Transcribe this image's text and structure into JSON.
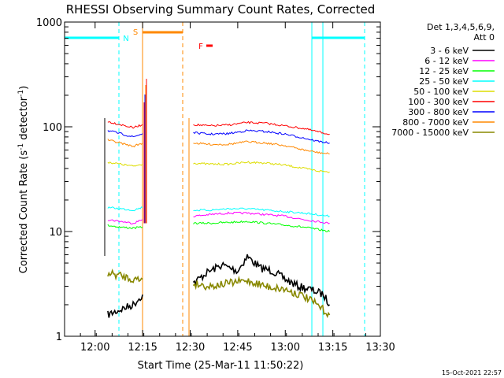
{
  "chart_data": {
    "type": "line",
    "title": "RHESSI Observing Summary Count Rates, Corrected",
    "xlabel": "Start Time (25-Mar-11 11:50:22)",
    "ylabel_main": "Corrected Count Rate (s",
    "ylabel_sup1": "-1",
    "ylabel_mid": " detector",
    "ylabel_sup2": "-1",
    "ylabel_end": ")",
    "yscale": "log",
    "xlim": [
      "11:50:22",
      "13:30:00"
    ],
    "ylim": [
      1,
      1000
    ],
    "grid": false,
    "x_ticks": [
      "12:00",
      "12:15",
      "12:30",
      "12:45",
      "13:00",
      "13:15",
      "13:30"
    ],
    "y_ticks": [
      "1",
      "10",
      "100",
      "1000"
    ],
    "legend": {
      "placement": "right",
      "header_line1": "Det 1,3,4,5,6,9,",
      "header_line2": "Att 0"
    },
    "series": [
      {
        "name": "3 - 6 keV",
        "color": "#000000",
        "segments": [
          {
            "x": [
              "12:04",
              "12:08",
              "12:12",
              "12:15"
            ],
            "y": [
              1.6,
              1.8,
              2.0,
              2.5
            ]
          },
          {
            "x": [
              "12:31",
              "12:35",
              "12:40",
              "12:45",
              "12:48",
              "12:52",
              "12:56",
              "13:00",
              "13:04",
              "13:08",
              "13:12",
              "13:14"
            ],
            "y": [
              3.2,
              4.0,
              4.8,
              4.2,
              5.8,
              4.5,
              4.2,
              3.5,
              3.0,
              2.8,
              2.5,
              2.0
            ]
          }
        ]
      },
      {
        "name": "6 - 12 keV",
        "color": "#ff00ff",
        "segments": [
          {
            "x": [
              "12:04",
              "12:08",
              "12:12",
              "12:15"
            ],
            "y": [
              13,
              12.5,
              12,
              13
            ]
          },
          {
            "x": [
              "12:31",
              "12:36",
              "12:42",
              "12:48",
              "12:54",
              "13:00",
              "13:06",
              "13:10",
              "13:14"
            ],
            "y": [
              14,
              14.5,
              15,
              15,
              14.5,
              14,
              13,
              12.5,
              12
            ]
          }
        ]
      },
      {
        "name": "12 - 25 keV",
        "color": "#00ff00",
        "segments": [
          {
            "x": [
              "12:04",
              "12:08",
              "12:12",
              "12:15"
            ],
            "y": [
              11.5,
              11,
              10.8,
              11
            ]
          },
          {
            "x": [
              "12:31",
              "12:36",
              "12:42",
              "12:48",
              "12:54",
              "13:00",
              "13:06",
              "13:10",
              "13:14"
            ],
            "y": [
              12,
              12,
              12.2,
              12.5,
              12,
              11.5,
              11,
              10.5,
              10
            ]
          }
        ]
      },
      {
        "name": "25 - 50 keV",
        "color": "#00ffff",
        "segments": [
          {
            "x": [
              "12:04",
              "12:08",
              "12:12",
              "12:15"
            ],
            "y": [
              17,
              16.5,
              16,
              17
            ]
          },
          {
            "x": [
              "12:31",
              "12:36",
              "12:42",
              "12:48",
              "12:54",
              "13:00",
              "13:06",
              "13:10",
              "13:14"
            ],
            "y": [
              16,
              16,
              16.5,
              16.5,
              16,
              15.5,
              15,
              14.5,
              14
            ]
          }
        ]
      },
      {
        "name": "50 - 100 keV",
        "color": "#dddd00",
        "segments": [
          {
            "x": [
              "12:04",
              "12:08",
              "12:12",
              "12:15"
            ],
            "y": [
              46,
              44,
              42,
              44
            ]
          },
          {
            "x": [
              "12:31",
              "12:36",
              "12:42",
              "12:48",
              "12:54",
              "13:00",
              "13:06",
              "13:10",
              "13:14"
            ],
            "y": [
              45,
              44,
              44,
              46,
              45,
              43,
              40,
              38,
              37
            ]
          }
        ]
      },
      {
        "name": "100 - 300 keV",
        "color": "#ff0000",
        "segments": [
          {
            "x": [
              "12:04",
              "12:08",
              "12:12",
              "12:15"
            ],
            "y": [
              112,
              105,
              98,
              105
            ]
          },
          {
            "x": [
              "12:31",
              "12:36",
              "12:42",
              "12:48",
              "12:54",
              "13:00",
              "13:06",
              "13:10",
              "13:14"
            ],
            "y": [
              105,
              102,
              104,
              110,
              108,
              102,
              96,
              90,
              85
            ]
          }
        ]
      },
      {
        "name": "300 - 800 keV",
        "color": "#0000ff",
        "segments": [
          {
            "x": [
              "12:04",
              "12:08",
              "12:12",
              "12:15"
            ],
            "y": [
              92,
              86,
              80,
              86
            ]
          },
          {
            "x": [
              "12:31",
              "12:36",
              "12:42",
              "12:48",
              "12:54",
              "13:00",
              "13:06",
              "13:10",
              "13:14"
            ],
            "y": [
              88,
              85,
              86,
              92,
              90,
              85,
              78,
              73,
              70
            ]
          }
        ]
      },
      {
        "name": "800 - 7000 keV",
        "color": "#ff8800",
        "segments": [
          {
            "x": [
              "12:04",
              "12:08",
              "12:12",
              "12:15"
            ],
            "y": [
              75,
              70,
              65,
              70
            ]
          },
          {
            "x": [
              "12:31",
              "12:36",
              "12:42",
              "12:48",
              "12:54",
              "13:00",
              "13:06",
              "13:10",
              "13:14"
            ],
            "y": [
              70,
              68,
              68,
              72,
              70,
              66,
              60,
              57,
              55
            ]
          }
        ]
      },
      {
        "name": "7000 - 15000 keV",
        "color": "#888800",
        "segments": [
          {
            "x": [
              "12:04",
              "12:08",
              "12:12",
              "12:15"
            ],
            "y": [
              4.0,
              3.8,
              3.5,
              3.5
            ]
          },
          {
            "x": [
              "12:31",
              "12:36",
              "12:42",
              "12:48",
              "12:54",
              "13:00",
              "13:06",
              "13:10",
              "13:14"
            ],
            "y": [
              3.2,
              3.0,
              3.2,
              3.4,
              3.0,
              2.8,
              2.4,
              2.0,
              1.6
            ]
          }
        ]
      }
    ],
    "annotations": {
      "N": {
        "label": "N",
        "color": "#00ffff"
      },
      "S": {
        "label": "S",
        "color": "#ff8800"
      },
      "F": {
        "label": "F",
        "color": "#ff0000"
      }
    },
    "timestamp": "15-Oct-2021 22:57"
  }
}
